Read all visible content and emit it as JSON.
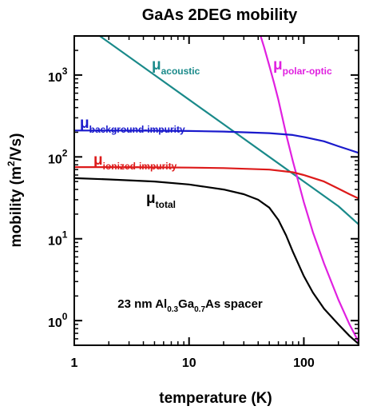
{
  "chart_data": {
    "type": "line",
    "title": "GaAs 2DEG mobility",
    "xlabel": "temperature (K)",
    "ylabel": "mobility (m²/Vs)",
    "ylabel_main": "mobility (m",
    "ylabel_sup": "2",
    "ylabel_end": "/Vs)",
    "xscale": "log",
    "yscale": "log",
    "xlim": [
      1,
      300
    ],
    "ylim": [
      0.5,
      3000
    ],
    "grid": false,
    "legend": "none",
    "x_ticks": [
      {
        "value": 1,
        "label": "1"
      },
      {
        "value": 10,
        "label": "10"
      },
      {
        "value": 100,
        "label": "100"
      }
    ],
    "y_ticks": [
      {
        "value": 1,
        "base": "10",
        "exp": "0"
      },
      {
        "value": 10,
        "base": "10",
        "exp": "1"
      },
      {
        "value": 100,
        "base": "10",
        "exp": "2"
      },
      {
        "value": 1000,
        "base": "10",
        "exp": "3"
      }
    ],
    "series": [
      {
        "key": "acoustic",
        "color": "#1a8a8a",
        "label": {
          "main": "μ",
          "sub": "acoustic"
        },
        "x": [
          1.0,
          2.0,
          5.0,
          10.0,
          20.0,
          50.0,
          100.0,
          200.0,
          300.0
        ],
        "y": [
          5000,
          2500,
          1000,
          500,
          250,
          100,
          50,
          25,
          15
        ]
      },
      {
        "key": "polar-optic",
        "color": "#e020e0",
        "label": {
          "main": "μ",
          "sub": "polar-optic"
        },
        "x": [
          42,
          45,
          50,
          55,
          60,
          70,
          80,
          100,
          120,
          150,
          200,
          250,
          300
        ],
        "y": [
          3000,
          2200,
          1300,
          800,
          500,
          190,
          90,
          28,
          12,
          5.0,
          1.8,
          0.9,
          0.55
        ]
      },
      {
        "key": "background-impurity",
        "color": "#1a1acc",
        "label": {
          "main": "μ",
          "sub": "background-impurity"
        },
        "x": [
          1,
          2,
          5,
          10,
          20,
          50,
          80,
          100,
          150,
          200,
          250,
          300
        ],
        "y": [
          210,
          210,
          209,
          207,
          204,
          195,
          185,
          175,
          155,
          135,
          122,
          112
        ]
      },
      {
        "key": "ionized-impurity",
        "color": "#dd1a1a",
        "label": {
          "main": "μ",
          "sub": "ionized-impurity"
        },
        "x": [
          1,
          2,
          5,
          10,
          20,
          50,
          80,
          100,
          150,
          200,
          250,
          300
        ],
        "y": [
          75,
          75,
          74.5,
          74,
          73,
          70,
          65,
          60,
          50,
          41,
          35,
          31
        ]
      },
      {
        "key": "total",
        "color": "#000000",
        "label": {
          "main": "μ",
          "sub": "total"
        },
        "x": [
          1,
          2,
          5,
          10,
          20,
          30,
          40,
          50,
          60,
          70,
          80,
          100,
          120,
          150,
          200,
          250,
          300
        ],
        "y": [
          55,
          53,
          50,
          46,
          40,
          35,
          30,
          24,
          17,
          11,
          7,
          3.5,
          2.2,
          1.4,
          0.9,
          0.65,
          0.52
        ]
      }
    ],
    "annotation": {
      "parts": [
        {
          "text": "23 nm Al",
          "sub": false
        },
        {
          "text": "0.3",
          "sub": true
        },
        {
          "text": "Ga",
          "sub": false
        },
        {
          "text": "0.7",
          "sub": true
        },
        {
          "text": "As spacer",
          "sub": false
        }
      ]
    }
  }
}
